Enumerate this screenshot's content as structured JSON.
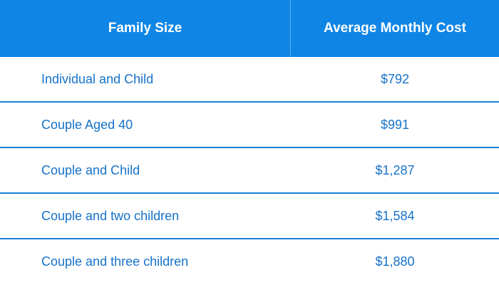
{
  "chart_data": {
    "type": "table",
    "columns": [
      "Family Size",
      "Average Monthly Cost"
    ],
    "rows": [
      [
        "Individual and Child",
        "$792"
      ],
      [
        "Couple Aged 40",
        "$991"
      ],
      [
        "Couple and Child",
        "$1,287"
      ],
      [
        "Couple and two children",
        "$1,584"
      ],
      [
        "Couple and three children",
        "$1,880"
      ]
    ],
    "colors": {
      "header_bg": "#0f86e6",
      "header_text": "#ffffff",
      "body_text": "#1672c9",
      "row_border": "#1a7ed8"
    }
  }
}
